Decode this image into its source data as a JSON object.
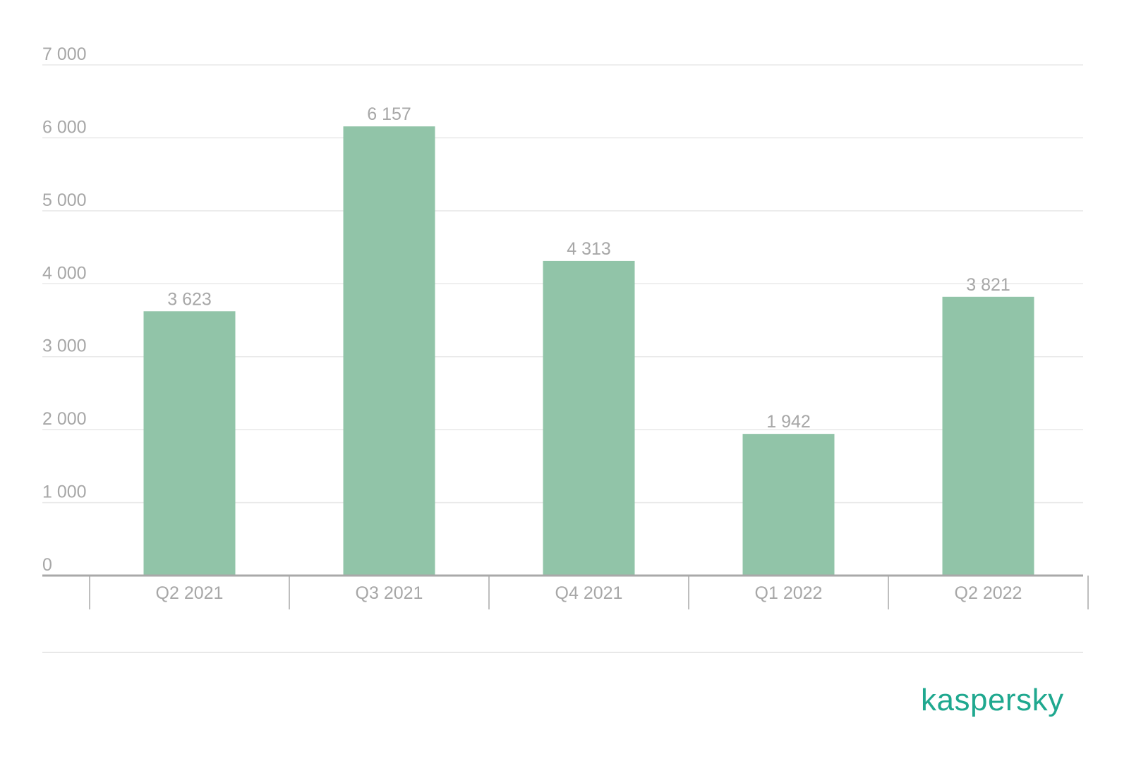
{
  "chart_data": {
    "type": "bar",
    "categories": [
      "Q2 2021",
      "Q3 2021",
      "Q4 2021",
      "Q1 2022",
      "Q2 2022"
    ],
    "values": [
      3623,
      6157,
      4313,
      1942,
      3821
    ],
    "value_labels": [
      "3 623",
      "6 157",
      "4 313",
      "1 942",
      "3 821"
    ],
    "y_ticks": [
      0,
      1000,
      2000,
      3000,
      4000,
      5000,
      6000,
      7000
    ],
    "y_tick_labels": [
      "0",
      "1 000",
      "2 000",
      "3 000",
      "4 000",
      "5 000",
      "6 000",
      "7 000"
    ],
    "ylim": [
      0,
      7000
    ],
    "grid": true,
    "legend": "none",
    "title": "",
    "xlabel": "",
    "ylabel": ""
  },
  "colors": {
    "bar": "#91c4a8",
    "grid": "#e8e8e8",
    "axis": "#a9a9a9",
    "text": "#a7a7a7",
    "brand": "#1fa88f"
  },
  "logo": {
    "text": "kaspersky"
  }
}
